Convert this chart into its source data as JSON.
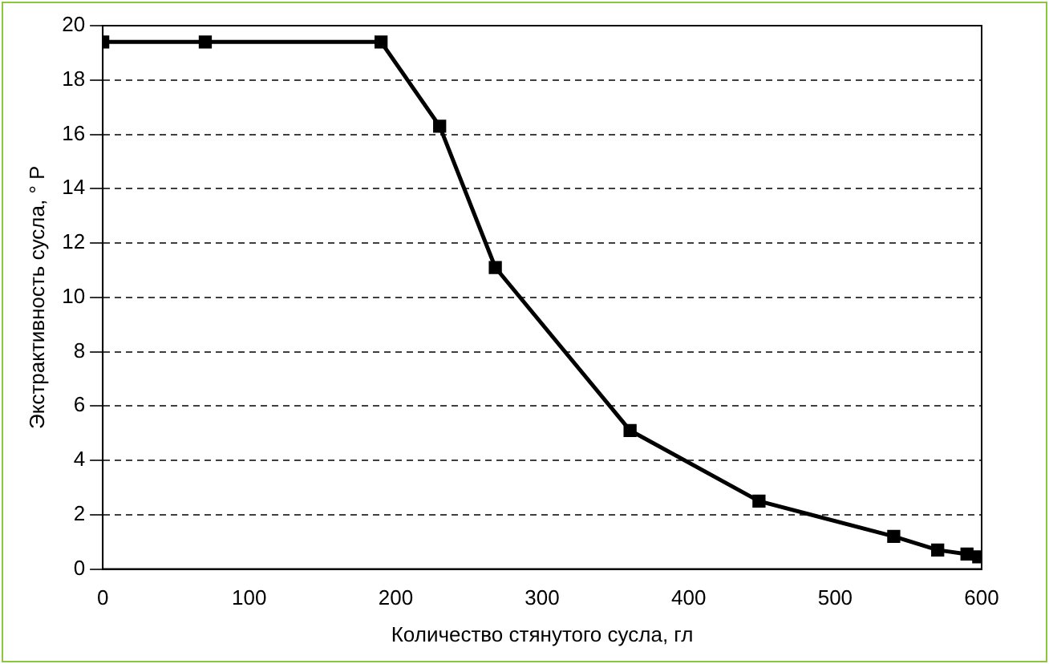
{
  "chart_data": {
    "type": "line",
    "xlabel": "Количество стянутого сусла, гл",
    "ylabel": "Экстрактивность сусла, ° Р",
    "x": [
      0,
      70,
      190,
      230,
      268,
      360,
      448,
      540,
      570,
      590,
      598
    ],
    "series": [
      {
        "color": "#000000",
        "values": [
          19.4,
          19.4,
          19.4,
          16.3,
          11.1,
          5.1,
          2.5,
          1.2,
          0.7,
          0.55,
          0.45
        ]
      }
    ],
    "xlim": [
      0,
      600
    ],
    "xticks": [
      0,
      100,
      200,
      300,
      400,
      500,
      600
    ],
    "ylim": [
      0,
      20
    ],
    "yticks": [
      0,
      2,
      4,
      6,
      8,
      10,
      12,
      14,
      16,
      18,
      20
    ],
    "grid": "y",
    "marker": "square",
    "line_style": "solid",
    "legend": false
  }
}
